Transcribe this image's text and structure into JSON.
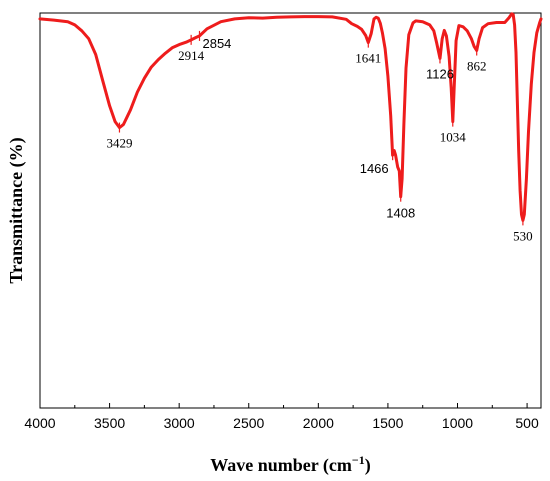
{
  "chart_data": {
    "type": "line",
    "title": "",
    "xlabel": "Wave number (cm",
    "xlabel_sup": "−1",
    "xlabel_end": ")",
    "ylabel": "Transmittance (%)",
    "x_reversed": true,
    "xlim": [
      4000,
      400
    ],
    "ylim": [
      0,
      100
    ],
    "x_ticks": [
      4000,
      3500,
      3000,
      2500,
      2000,
      1500,
      1000,
      500
    ],
    "x_tick_labels": [
      "4000",
      "3500",
      "3000",
      "2500",
      "2000",
      "1500",
      "1000",
      "500"
    ],
    "y_tick_labels_shown": false,
    "grid": false,
    "line_color": "#ee1c1c",
    "series": [
      {
        "points": [
          [
            4000,
            98.5
          ],
          [
            3900,
            98.2
          ],
          [
            3800,
            97.8
          ],
          [
            3750,
            97.0
          ],
          [
            3700,
            95.5
          ],
          [
            3650,
            93.5
          ],
          [
            3600,
            89.5
          ],
          [
            3550,
            83.0
          ],
          [
            3500,
            76.5
          ],
          [
            3460,
            72.5
          ],
          [
            3429,
            71.0
          ],
          [
            3400,
            71.8
          ],
          [
            3350,
            75.5
          ],
          [
            3300,
            80.0
          ],
          [
            3250,
            83.5
          ],
          [
            3200,
            86.3
          ],
          [
            3150,
            88.2
          ],
          [
            3100,
            89.8
          ],
          [
            3050,
            91.2
          ],
          [
            3000,
            92.0
          ],
          [
            2950,
            92.6
          ],
          [
            2914,
            93.2
          ],
          [
            2880,
            93.8
          ],
          [
            2854,
            94.2
          ],
          [
            2800,
            96.0
          ],
          [
            2700,
            97.8
          ],
          [
            2600,
            98.5
          ],
          [
            2500,
            98.8
          ],
          [
            2400,
            98.7
          ],
          [
            2300,
            98.9
          ],
          [
            2200,
            99.0
          ],
          [
            2100,
            99.1
          ],
          [
            2000,
            99.1
          ],
          [
            1900,
            99.0
          ],
          [
            1800,
            98.4
          ],
          [
            1760,
            97.3
          ],
          [
            1720,
            96.6
          ],
          [
            1690,
            95.9
          ],
          [
            1660,
            94.3
          ],
          [
            1641,
            92.5
          ],
          [
            1620,
            94.8
          ],
          [
            1600,
            98.5
          ],
          [
            1585,
            98.9
          ],
          [
            1570,
            98.7
          ],
          [
            1555,
            97.4
          ],
          [
            1540,
            95.0
          ],
          [
            1520,
            91.0
          ],
          [
            1500,
            84.0
          ],
          [
            1480,
            74.0
          ],
          [
            1466,
            64.0
          ],
          [
            1455,
            65.2
          ],
          [
            1445,
            64.0
          ],
          [
            1430,
            61.0
          ],
          [
            1418,
            60.0
          ],
          [
            1408,
            53.5
          ],
          [
            1398,
            58.0
          ],
          [
            1385,
            72.0
          ],
          [
            1370,
            86.0
          ],
          [
            1350,
            94.5
          ],
          [
            1320,
            97.5
          ],
          [
            1300,
            98.0
          ],
          [
            1250,
            97.8
          ],
          [
            1200,
            97.0
          ],
          [
            1170,
            95.5
          ],
          [
            1150,
            92.5
          ],
          [
            1126,
            88.5
          ],
          [
            1110,
            93.5
          ],
          [
            1095,
            95.6
          ],
          [
            1080,
            94.2
          ],
          [
            1060,
            89.0
          ],
          [
            1045,
            81.0
          ],
          [
            1034,
            72.5
          ],
          [
            1025,
            80.0
          ],
          [
            1010,
            93.0
          ],
          [
            990,
            96.8
          ],
          [
            960,
            96.5
          ],
          [
            930,
            95.5
          ],
          [
            900,
            93.5
          ],
          [
            880,
            91.5
          ],
          [
            862,
            90.5
          ],
          [
            845,
            93.5
          ],
          [
            820,
            96.3
          ],
          [
            780,
            97.3
          ],
          [
            720,
            97.6
          ],
          [
            660,
            97.6
          ],
          [
            630,
            98.8
          ],
          [
            610,
            99.8
          ],
          [
            600,
            99.6
          ],
          [
            590,
            97.0
          ],
          [
            580,
            90.0
          ],
          [
            570,
            78.0
          ],
          [
            560,
            65.0
          ],
          [
            550,
            55.0
          ],
          [
            540,
            49.0
          ],
          [
            530,
            47.5
          ],
          [
            520,
            49.0
          ],
          [
            505,
            58.0
          ],
          [
            490,
            70.0
          ],
          [
            470,
            82.0
          ],
          [
            450,
            90.0
          ],
          [
            430,
            95.0
          ],
          [
            410,
            97.5
          ],
          [
            400,
            98.5
          ]
        ]
      }
    ],
    "annotations": [
      {
        "text": "3429",
        "x": 3429,
        "y": 71.0,
        "font": "serif",
        "side": "below"
      },
      {
        "text": "2914",
        "x": 2914,
        "y": 93.2,
        "font": "serif",
        "side": "below"
      },
      {
        "text": "2854",
        "x": 2854,
        "y": 94.2,
        "font": "sans",
        "side": "below-right"
      },
      {
        "text": "1641",
        "x": 1641,
        "y": 92.5,
        "font": "serif",
        "side": "below"
      },
      {
        "text": "1466",
        "x": 1466,
        "y": 64.0,
        "font": "sans",
        "side": "below-left"
      },
      {
        "text": "1408",
        "x": 1408,
        "y": 53.5,
        "font": "sans",
        "side": "below"
      },
      {
        "text": "1126",
        "x": 1126,
        "y": 88.5,
        "font": "sans",
        "side": "below"
      },
      {
        "text": "1034",
        "x": 1034,
        "y": 72.5,
        "font": "serif",
        "side": "below"
      },
      {
        "text": "862",
        "x": 862,
        "y": 90.5,
        "font": "serif",
        "side": "below"
      },
      {
        "text": "530",
        "x": 530,
        "y": 47.5,
        "font": "serif",
        "side": "below"
      }
    ]
  }
}
